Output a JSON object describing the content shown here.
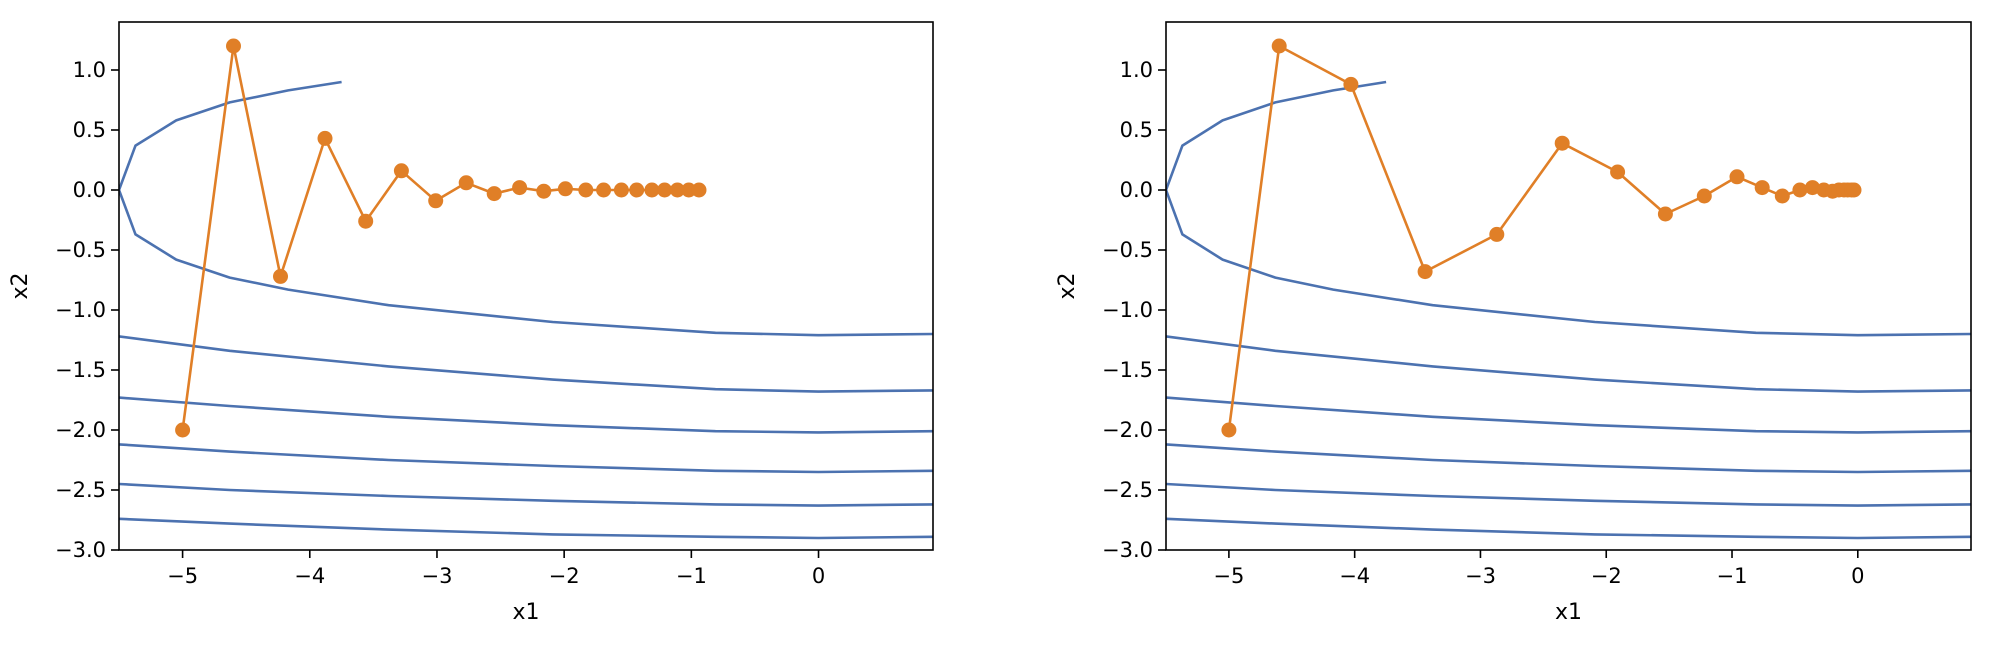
{
  "colors": {
    "contour": "#4c72b0",
    "trajectory": "#e07f27",
    "axis": "#000000"
  },
  "chart_data": [
    {
      "type": "line",
      "title": "",
      "xlabel": "x1",
      "ylabel": "x2",
      "xlim": [
        -5.5,
        0.9
      ],
      "ylim": [
        -3.0,
        1.4
      ],
      "grid": false,
      "xticks": [
        -5,
        -4,
        -3,
        -2,
        -1,
        0
      ],
      "xtick_labels": [
        "−5",
        "−4",
        "−3",
        "−2",
        "−1",
        "0"
      ],
      "yticks": [
        1.0,
        0.5,
        0.0,
        -0.5,
        -1.0,
        -1.5,
        -2.0,
        -2.5,
        -3.0
      ],
      "ytick_labels": [
        "1.0",
        "0.5",
        "0.0",
        "−0.5",
        "−1.0",
        "−1.5",
        "−2.0",
        "−2.5",
        "−3.0"
      ],
      "contour_levels": [
        1,
        7,
        14,
        21,
        28,
        35
      ],
      "contour_segments": [
        {
          "x": [
            -3.75,
            -4.17,
            -4.63,
            -5.05,
            -5.37,
            -5.5,
            -5.37,
            -5.05,
            -4.63,
            -4.17,
            -3.38,
            -2.09,
            -0.81,
            0.0,
            0.9
          ],
          "y": [
            0.9,
            0.83,
            0.73,
            0.58,
            0.37,
            0.0,
            -0.37,
            -0.58,
            -0.73,
            -0.83,
            -0.96,
            -1.1,
            -1.19,
            -1.21,
            -1.2
          ]
        },
        {
          "x": [
            -5.5,
            -4.63,
            -3.38,
            -2.09,
            -0.81,
            0.0,
            0.9
          ],
          "y": [
            -1.22,
            -1.34,
            -1.47,
            -1.58,
            -1.66,
            -1.68,
            -1.67
          ]
        },
        {
          "x": [
            -5.5,
            -4.63,
            -3.38,
            -2.09,
            -0.81,
            0.0,
            0.9
          ],
          "y": [
            -1.73,
            -1.8,
            -1.89,
            -1.96,
            -2.01,
            -2.02,
            -2.01
          ]
        },
        {
          "x": [
            -5.5,
            -4.63,
            -3.38,
            -2.09,
            -0.81,
            0.0,
            0.9
          ],
          "y": [
            -2.12,
            -2.18,
            -2.25,
            -2.3,
            -2.34,
            -2.35,
            -2.34
          ]
        },
        {
          "x": [
            -5.5,
            -4.63,
            -3.38,
            -2.09,
            -0.81,
            0.0,
            0.9
          ],
          "y": [
            -2.45,
            -2.5,
            -2.55,
            -2.59,
            -2.62,
            -2.63,
            -2.62
          ]
        },
        {
          "x": [
            -5.5,
            -4.63,
            -3.38,
            -2.09,
            -0.81,
            0.0,
            0.9
          ],
          "y": [
            -2.74,
            -2.78,
            -2.83,
            -2.87,
            -2.89,
            -2.9,
            -2.89
          ]
        }
      ],
      "series": [
        {
          "x": [
            -5.0,
            -4.6,
            -4.23,
            -3.88,
            -3.56,
            -3.28,
            -3.01,
            -2.77,
            -2.55,
            -2.35,
            -2.16,
            -1.99,
            -1.83,
            -1.69,
            -1.55,
            -1.43,
            -1.31,
            -1.21,
            -1.11,
            -1.02,
            -0.94
          ],
          "y": [
            -2.0,
            1.2,
            -0.72,
            0.43,
            -0.26,
            0.16,
            -0.09,
            0.06,
            -0.03,
            0.02,
            -0.01,
            0.01,
            0.0,
            0.0,
            0.0,
            0.0,
            0.0,
            0.0,
            0.0,
            0.0,
            0.0
          ]
        }
      ]
    },
    {
      "type": "line",
      "title": "",
      "xlabel": "x1",
      "ylabel": "x2",
      "xlim": [
        -5.5,
        0.9
      ],
      "ylim": [
        -3.0,
        1.4
      ],
      "grid": false,
      "xticks": [
        -5,
        -4,
        -3,
        -2,
        -1,
        0
      ],
      "xtick_labels": [
        "−5",
        "−4",
        "−3",
        "−2",
        "−1",
        "0"
      ],
      "yticks": [
        1.0,
        0.5,
        0.0,
        -0.5,
        -1.0,
        -1.5,
        -2.0,
        -2.5,
        -3.0
      ],
      "ytick_labels": [
        "1.0",
        "0.5",
        "0.0",
        "−0.5",
        "−1.0",
        "−1.5",
        "−2.0",
        "−2.5",
        "−3.0"
      ],
      "contour_levels": [
        1,
        7,
        14,
        21,
        28,
        35
      ],
      "contour_segments": [
        {
          "x": [
            -3.75,
            -4.17,
            -4.63,
            -5.05,
            -5.37,
            -5.5,
            -5.37,
            -5.05,
            -4.63,
            -4.17,
            -3.38,
            -2.09,
            -0.81,
            0.0,
            0.9
          ],
          "y": [
            0.9,
            0.83,
            0.73,
            0.58,
            0.37,
            0.0,
            -0.37,
            -0.58,
            -0.73,
            -0.83,
            -0.96,
            -1.1,
            -1.19,
            -1.21,
            -1.2
          ]
        },
        {
          "x": [
            -5.5,
            -4.63,
            -3.38,
            -2.09,
            -0.81,
            0.0,
            0.9
          ],
          "y": [
            -1.22,
            -1.34,
            -1.47,
            -1.58,
            -1.66,
            -1.68,
            -1.67
          ]
        },
        {
          "x": [
            -5.5,
            -4.63,
            -3.38,
            -2.09,
            -0.81,
            0.0,
            0.9
          ],
          "y": [
            -1.73,
            -1.8,
            -1.89,
            -1.96,
            -2.01,
            -2.02,
            -2.01
          ]
        },
        {
          "x": [
            -5.5,
            -4.63,
            -3.38,
            -2.09,
            -0.81,
            0.0,
            0.9
          ],
          "y": [
            -2.12,
            -2.18,
            -2.25,
            -2.3,
            -2.34,
            -2.35,
            -2.34
          ]
        },
        {
          "x": [
            -5.5,
            -4.63,
            -3.38,
            -2.09,
            -0.81,
            0.0,
            0.9
          ],
          "y": [
            -2.45,
            -2.5,
            -2.55,
            -2.59,
            -2.62,
            -2.63,
            -2.62
          ]
        },
        {
          "x": [
            -5.5,
            -4.63,
            -3.38,
            -2.09,
            -0.81,
            0.0,
            0.9
          ],
          "y": [
            -2.74,
            -2.78,
            -2.83,
            -2.87,
            -2.89,
            -2.9,
            -2.89
          ]
        }
      ],
      "series": [
        {
          "x": [
            -5.0,
            -4.6,
            -4.03,
            -3.44,
            -2.87,
            -2.35,
            -1.91,
            -1.53,
            -1.22,
            -0.96,
            -0.76,
            -0.6,
            -0.46,
            -0.36,
            -0.27,
            -0.2,
            -0.15,
            -0.11,
            -0.08,
            -0.05,
            -0.03
          ],
          "y": [
            -2.0,
            1.2,
            0.88,
            -0.68,
            -0.37,
            0.39,
            0.15,
            -0.2,
            -0.05,
            0.11,
            0.02,
            -0.05,
            0.0,
            0.02,
            0.0,
            -0.01,
            0.0,
            0.0,
            0.0,
            0.0,
            0.0
          ]
        }
      ]
    }
  ]
}
